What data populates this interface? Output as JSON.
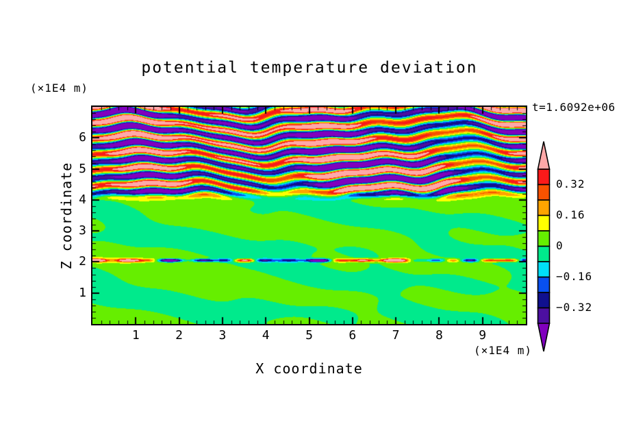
{
  "chart_data": {
    "type": "heatmap",
    "subtype": "filled_contour",
    "title": "potential temperature deviation",
    "xlabel": "X coordinate",
    "ylabel": "Z coordinate",
    "x_unit_label": "(×1E4 m)",
    "y_unit_label": "(×1E4 m)",
    "time_annotation": "t=1.6092e+06",
    "x_range": [
      0,
      10
    ],
    "z_range": [
      0,
      7
    ],
    "x_major_ticks": [
      1,
      2,
      3,
      4,
      5,
      6,
      7,
      8,
      9
    ],
    "z_major_ticks": [
      1,
      2,
      3,
      4,
      5,
      6
    ],
    "minor_tick_step": 0.2,
    "grid": false,
    "legend_position": "right-colorbar",
    "contour_levels": [
      -0.4,
      -0.32,
      -0.24,
      -0.16,
      -0.08,
      0,
      0.08,
      0.16,
      0.24,
      0.32,
      0.4
    ],
    "palette": [
      "#8000BE",
      "#4C0FA0",
      "#10108F",
      "#0850F0",
      "#00E0F8",
      "#00EA8C",
      "#66EE00",
      "#FFFF00",
      "#FFA400",
      "#F85200",
      "#FA1A1A",
      "#FFA8A8"
    ],
    "colorbar_labels": [
      "0.32",
      "0.16",
      "0",
      "−0.16",
      "−0.32"
    ],
    "field_summary": [
      "Lower region z<4: weak deviations within ±0.08, patchy chartreuse/spring-green blobs",
      "Thin shear line near z=2.05 with alternating warm (yellow/orange/red) and cold (cyan/blue/navy) streaks",
      "Upper region z>4.4: breaking wave layers alternating beyond +0.4 (pink) and -0.4 (purple) with thin rainbow rims",
      "Transition band z=3.9-4.4 where layered structure fades into the green region"
    ],
    "field_model": {
      "band_wavelength_z": 0.5,
      "band_phase": 2.18,
      "band_amp_base": 0.47,
      "band_amp_clamp": [
        0.26,
        0.7
      ],
      "transition_z": [
        3.92,
        4.38
      ],
      "shear_line_z": 2.05,
      "shear_line_halfwidth": 0.05,
      "shear_line_amplitude": 0.7,
      "lower_soft_limit": 0.075,
      "lower_soft_scale": 0.055,
      "lower_waves": [
        [
          1.1,
          2.6,
          0.05,
          1.3
        ],
        [
          0.65,
          3.4,
          0.04,
          0.7
        ],
        [
          2.3,
          5.2,
          0.03,
          4.0
        ],
        [
          3.7,
          1.9,
          0.022,
          2.2
        ],
        [
          0.35,
          6.1,
          0.035,
          0.3
        ]
      ],
      "phase_waves": [
        [
          0.9,
          0.5,
          1.7,
          1.0
        ],
        [
          1.8,
          0.9,
          1.1,
          2.5
        ],
        [
          3.2,
          0.3,
          0.65,
          0.7
        ],
        [
          5.6,
          1.4,
          0.4,
          3.1
        ],
        [
          0.45,
          0.2,
          1.2,
          5.0
        ]
      ],
      "amp_waves": [
        [
          1.25,
          0.8,
          0.13,
          2.2
        ],
        [
          0.7,
          1.9,
          0.09,
          0.5
        ],
        [
          2.9,
          0.6,
          0.07,
          1.0
        ]
      ],
      "streak_waves": [
        [
          2.1,
          0.5,
          0.4
        ],
        [
          5.3,
          0.35,
          2.0
        ],
        [
          0.85,
          0.33,
          1.8
        ],
        [
          9.1,
          0.22,
          0.9
        ]
      ]
    }
  }
}
